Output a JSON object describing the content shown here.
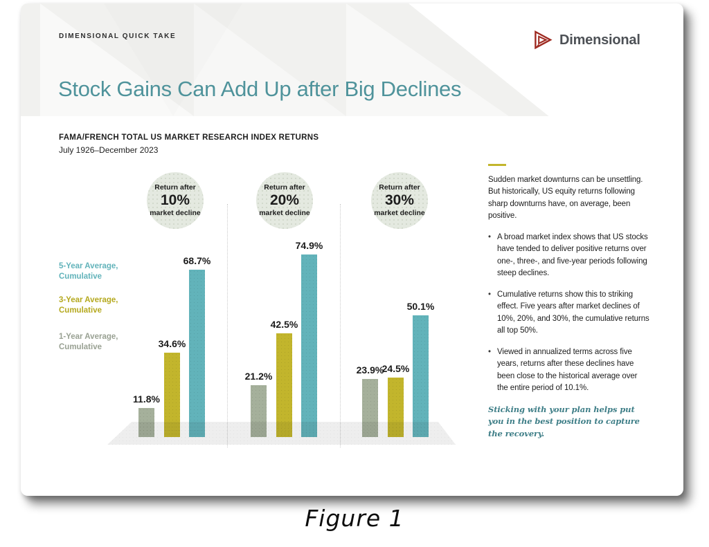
{
  "page": {
    "figure_caption": "Figure 1"
  },
  "header": {
    "kicker": "DIMENSIONAL QUICK TAKE",
    "title": "Stock Gains Can Add Up after Big Declines",
    "brand": "Dimensional",
    "brand_color": "#9e2a21"
  },
  "chart": {
    "heading": "FAMA/FRENCH TOTAL US MARKET RESEARCH INDEX RETURNS",
    "subheading": "July 1926–December 2023"
  },
  "chart_data": {
    "type": "bar",
    "title": "Fama/French Total US Market Research Index Returns, July 1926–December 2023",
    "categories": [
      "Return after 10% market decline",
      "Return after 20% market decline",
      "Return after 30% market decline"
    ],
    "groups": [
      {
        "line1": "Return after",
        "pct": "10%",
        "line3": "market decline"
      },
      {
        "line1": "Return after",
        "pct": "20%",
        "line3": "market decline"
      },
      {
        "line1": "Return after",
        "pct": "30%",
        "line3": "market decline"
      }
    ],
    "series": [
      {
        "name": "1-Year Average, Cumulative",
        "color": "#a5b09b",
        "values": [
          11.8,
          21.2,
          23.9
        ]
      },
      {
        "name": "3-Year Average, Cumulative",
        "color": "#c2b52c",
        "values": [
          34.6,
          42.5,
          24.5
        ]
      },
      {
        "name": "5-Year Average, Cumulative",
        "color": "#62b3ba",
        "values": [
          68.7,
          74.9,
          50.1
        ]
      }
    ],
    "value_suffix": "%",
    "ylim": [
      0,
      80
    ],
    "grid": false,
    "legend_position": "left"
  },
  "legend": [
    {
      "line1": "5-Year Average,",
      "line2": "Cumulative",
      "color": "#62b3ba"
    },
    {
      "line1": "3-Year Average,",
      "line2": "Cumulative",
      "color": "#b5a91f"
    },
    {
      "line1": "1-Year Average,",
      "line2": "Cumulative",
      "color": "#99a193"
    }
  ],
  "sidebar": {
    "accent_color": "#c2b52c",
    "intro": "Sudden market downturns can be unsettling. But historically, US equity returns following sharp downturns have, on average, been positive.",
    "bullets": [
      "A broad market index shows that US stocks have tended to deliver positive returns over one-, three-, and five-year periods following steep declines.",
      "Cumulative returns show this to striking effect. Five years after market declines of 10%, 20%, and 30%, the cumulative returns all top 50%.",
      "Viewed in annualized terms across five years, returns after these declines have been close to the historical average over the entire period of 10.1%."
    ],
    "conclusion": "Sticking with your plan helps put you in the best position to capture the recovery."
  }
}
